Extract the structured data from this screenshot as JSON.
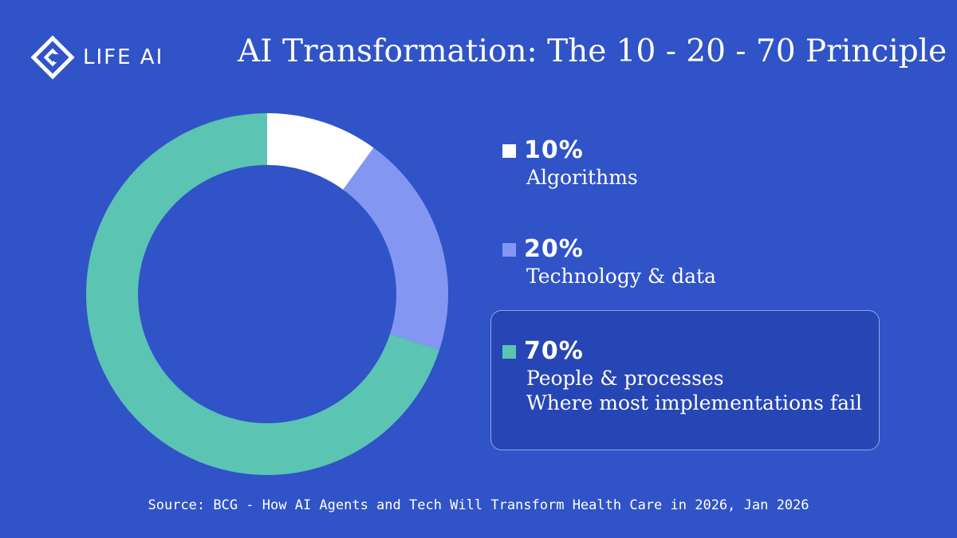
{
  "brand": {
    "name": "LIFE AI",
    "logo_icon": "life-ai-diamond-logo"
  },
  "chart_data": {
    "type": "pie",
    "title": "AI Transformation: The 10 - 20 - 70 Principle",
    "slices": [
      {
        "value": 10,
        "value_label": "10%",
        "label": "Algorithms",
        "color": "#ffffff"
      },
      {
        "value": 20,
        "value_label": "20%",
        "label": "Technology & data",
        "color": "#8397f2"
      },
      {
        "value": 70,
        "value_label": "70%",
        "label": "People & processes",
        "note": "Where most implementations fail",
        "color": "#5bc4b3",
        "highlighted": true
      }
    ],
    "legend_placement": "right"
  },
  "source": "Source: BCG - How AI Agents and Tech Will Transform Health Care in 2026, Jan 2026",
  "colors": {
    "background": "#3053c8",
    "highlight_box": "#2746b5",
    "highlight_border": "#8ea6ef"
  }
}
